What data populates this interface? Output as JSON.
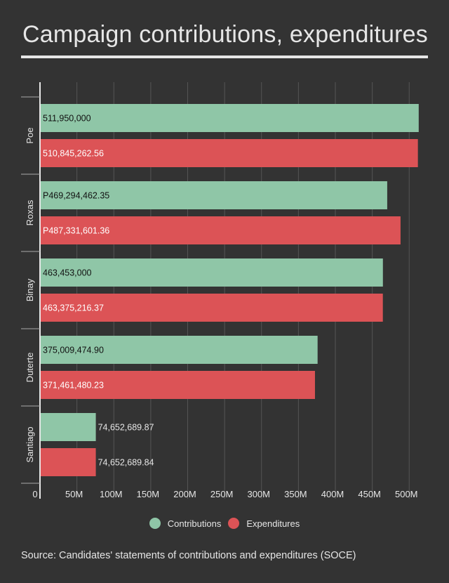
{
  "title": "Campaign contributions, expenditures",
  "source": "Source: Candidates' statements of contributions and expenditures (SOCE)",
  "colors": {
    "background": "#333333",
    "contributions": "#8fc6a7",
    "expenditures": "#dc5356",
    "text": "#e6e6e6",
    "grid": "#555555"
  },
  "chart_data": {
    "type": "bar",
    "orientation": "horizontal",
    "categories": [
      "Poe",
      "Roxas",
      "Binay",
      "Duterte",
      "Santiago"
    ],
    "series": [
      {
        "name": "Contributions",
        "values": [
          511950000,
          469294462.35,
          463453000,
          375009474.9,
          74652689.87
        ],
        "labels": [
          "511,950,000",
          "P469,294,462.35",
          "463,453,000",
          "375,009,474.90",
          "74,652,689.87"
        ]
      },
      {
        "name": "Expenditures",
        "values": [
          510845262.56,
          487331601.36,
          463375216.37,
          371461480.23,
          74652689.84
        ],
        "labels": [
          "510,845,262.56",
          "P487,331,601.36",
          "463,375,216.37",
          "371,461,480.23",
          "74,652,689.84"
        ]
      }
    ],
    "xlim": [
      0,
      520000000
    ],
    "x_ticks": [
      0,
      50000000,
      100000000,
      150000000,
      200000000,
      250000000,
      300000000,
      350000000,
      400000000,
      450000000,
      500000000
    ],
    "x_tick_labels": [
      "0",
      "50M",
      "100M",
      "150M",
      "200M",
      "250M",
      "300M",
      "350M",
      "400M",
      "450M",
      "500M"
    ],
    "grid": true,
    "legend_position": "bottom-center"
  },
  "legend": [
    {
      "label": "Contributions",
      "color": "#8fc6a7"
    },
    {
      "label": "Expenditures",
      "color": "#dc5356"
    }
  ]
}
